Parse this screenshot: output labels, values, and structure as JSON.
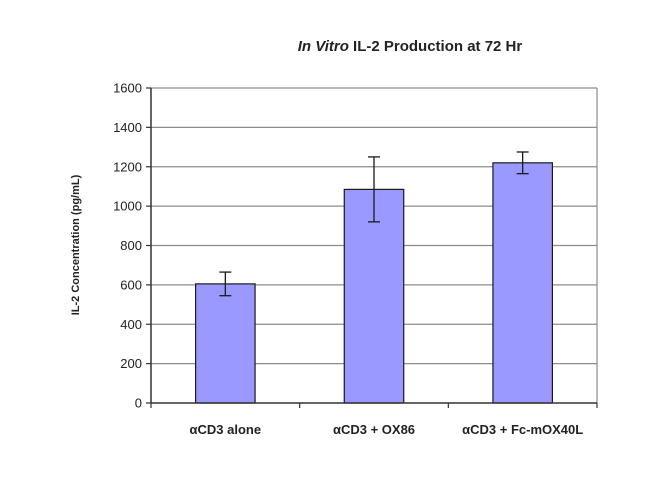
{
  "chart_data": {
    "type": "bar",
    "title": {
      "italic_part": "In Vitro",
      "rest": "IL-2 Production at 72 Hr"
    },
    "xlabel": "",
    "ylabel": "IL-2 Concentration (pg/mL)",
    "categories": [
      "αCD3 alone",
      "αCD3 + OX86",
      "αCD3 + Fc-mOX40L"
    ],
    "series": [
      {
        "values": [
          605,
          1085,
          1220
        ],
        "error": [
          60,
          165,
          55
        ]
      }
    ],
    "ylim": [
      0,
      1600
    ],
    "yticks": [
      0,
      200,
      400,
      600,
      800,
      1000,
      1200,
      1400,
      1600
    ],
    "grid": true,
    "bar_color": "#9999ff",
    "bar_edge_color": "#1a1a1a",
    "grid_color": "#8c8c8c",
    "legend": "none"
  }
}
